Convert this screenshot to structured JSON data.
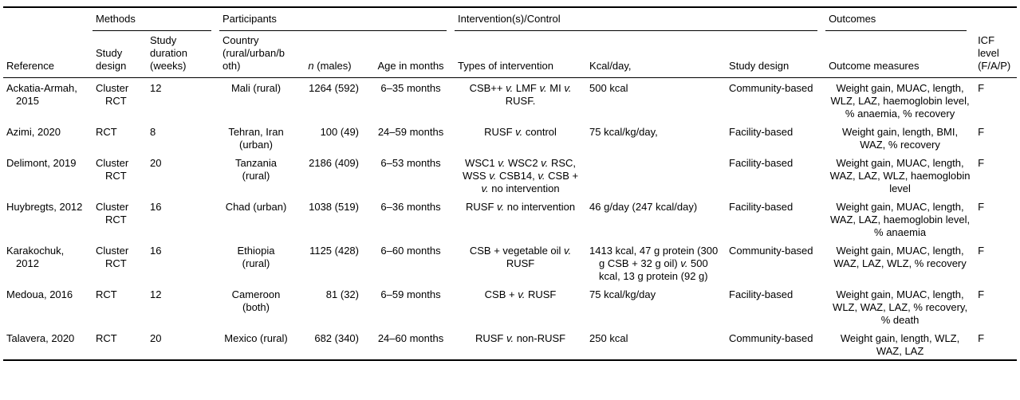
{
  "table": {
    "groups": [
      {
        "label": "Methods"
      },
      {
        "label": "Participants"
      },
      {
        "label": "Intervention(s)/Control"
      },
      {
        "label": "Outcomes"
      }
    ],
    "columns": {
      "reference": "Reference",
      "study_design": "Study design",
      "duration": "Study duration (weeks)",
      "country": "Country (rural/urban/both)",
      "n_males": "n (males)",
      "age": "Age in months",
      "intervention": "Types of intervention",
      "kcal": "Kcal/day,",
      "design": "Study design",
      "outcomes": "Outcome measures",
      "icf": "ICF level (F/A/P)"
    },
    "rows": [
      {
        "reference": "Ackatia-Armah, 2015",
        "study_design": "Cluster RCT",
        "duration": "12",
        "country": "Mali (rural)",
        "n_males": "1264 (592)",
        "age": "6–35 months",
        "intervention": "CSB++ v. LMF v. MI v. RUSF.",
        "kcal": "500 kcal",
        "design": "Community-based",
        "outcomes": "Weight gain, MUAC, length, WLZ, LAZ, haemoglobin level, % anaemia, % recovery",
        "icf": "F"
      },
      {
        "reference": "Azimi, 2020",
        "study_design": "RCT",
        "duration": "8",
        "country": "Tehran, Iran (urban)",
        "n_males": "100 (49)",
        "age": "24–59 months",
        "intervention": "RUSF v. control",
        "kcal": "75 kcal/kg/day,",
        "design": "Facility-based",
        "outcomes": "Weight gain, length, BMI, WAZ, % recovery",
        "icf": "F"
      },
      {
        "reference": "Delimont, 2019",
        "study_design": "Cluster RCT",
        "duration": "20",
        "country": "Tanzania (rural)",
        "n_males": "2186 (409)",
        "age": "6–53 months",
        "intervention": "WSC1 v. WSC2 v. RSC, WSS v. CSB14, v. CSB + v. no intervention",
        "kcal": "",
        "design": "Facility-based",
        "outcomes": "Weight gain, MUAC, length, WAZ, LAZ, WLZ, haemoglobin level",
        "icf": "F"
      },
      {
        "reference": "Huybregts, 2012",
        "study_design": "Cluster RCT",
        "duration": "16",
        "country": "Chad (urban)",
        "n_males": "1038 (519)",
        "age": "6–36 months",
        "intervention": "RUSF v. no intervention",
        "kcal": "46 g/day (247 kcal/day)",
        "design": "Facility-based",
        "outcomes": "Weight gain, MUAC, length, WAZ, LAZ, haemoglobin level, % anaemia",
        "icf": "F"
      },
      {
        "reference": "Karakochuk, 2012",
        "study_design": "Cluster RCT",
        "duration": "16",
        "country": "Ethiopia (rural)",
        "n_males": "1125 (428)",
        "age": "6–60 months",
        "intervention": "CSB + vegetable oil v. RUSF",
        "kcal": "1413 kcal, 47 g protein (300 g CSB + 32 g oil) v. 500 kcal, 13 g protein (92 g)",
        "design": "Community-based",
        "outcomes": "Weight gain, MUAC, length, WAZ, LAZ, WLZ, % recovery",
        "icf": "F"
      },
      {
        "reference": "Medoua, 2016",
        "study_design": "RCT",
        "duration": "12",
        "country": "Cameroon (both)",
        "n_males": "81 (32)",
        "age": "6–59 months",
        "intervention": "CSB + v. RUSF",
        "kcal": "75 kcal/kg/day",
        "design": "Facility-based",
        "outcomes": "Weight gain, MUAC, length, WLZ, WAZ, LAZ, % recovery, % death",
        "icf": "F"
      },
      {
        "reference": "Talavera, 2020",
        "study_design": "RCT",
        "duration": "20",
        "country": "Mexico (rural)",
        "n_males": "682 (340)",
        "age": "24–60 months",
        "intervention": "RUSF v. non-RUSF",
        "kcal": "250 kcal",
        "design": "Community-based",
        "outcomes": "Weight gain, length, WLZ, WAZ, LAZ",
        "icf": "F"
      }
    ]
  }
}
